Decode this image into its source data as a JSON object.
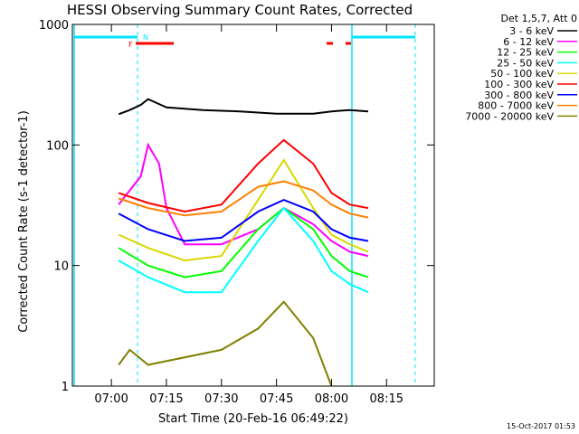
{
  "chart_data": {
    "type": "line",
    "title": "HESSI Observing Summary Count Rates, Corrected",
    "xlabel": "Start Time (20-Feb-16 06:49:22)",
    "ylabel": "Corrected Count Rate (s-1 detector-1)",
    "y_scale": "log",
    "ylim": [
      1,
      1000
    ],
    "xlim": [
      "06:49:22",
      "08:28:00"
    ],
    "x_ticks": [
      "07:00",
      "07:15",
      "07:30",
      "07:45",
      "08:00",
      "08:15"
    ],
    "y_ticks": [
      "1",
      "10",
      "100",
      "1000"
    ],
    "legend_title": "Det 1,5,7, Att 0",
    "legend_position": "outside-right",
    "flag_labels": {
      "flare": "F",
      "night": "N"
    },
    "series": [
      {
        "name": "3 - 6 keV",
        "color": "#000000",
        "x": [
          "07:02",
          "07:05",
          "07:08",
          "07:10",
          "07:15",
          "07:25",
          "07:35",
          "07:45",
          "07:55",
          "08:00",
          "08:05",
          "08:10"
        ],
        "y": [
          180,
          195,
          215,
          240,
          205,
          195,
          190,
          182,
          182,
          190,
          195,
          190
        ]
      },
      {
        "name": "6 - 12 keV",
        "color": "#ff00ff",
        "x": [
          "07:02",
          "07:08",
          "07:10",
          "07:13",
          "07:15",
          "07:20",
          "07:30",
          "07:40",
          "07:47",
          "07:55",
          "08:00",
          "08:05",
          "08:10"
        ],
        "y": [
          32,
          55,
          100,
          70,
          30,
          15,
          15,
          20,
          30,
          22,
          16,
          13,
          12
        ]
      },
      {
        "name": "12 - 25 keV",
        "color": "#00ff00",
        "x": [
          "07:02",
          "07:10",
          "07:20",
          "07:30",
          "07:40",
          "07:47",
          "07:55",
          "08:00",
          "08:05",
          "08:10"
        ],
        "y": [
          14,
          10,
          8,
          9,
          20,
          30,
          20,
          12,
          9,
          8
        ]
      },
      {
        "name": "25 - 50 keV",
        "color": "#00ffff",
        "x": [
          "07:02",
          "07:10",
          "07:20",
          "07:30",
          "07:40",
          "07:47",
          "07:55",
          "08:00",
          "08:05",
          "08:10"
        ],
        "y": [
          11,
          8,
          6,
          6,
          16,
          30,
          16,
          9,
          7,
          6
        ]
      },
      {
        "name": "50 - 100 keV",
        "color": "#d8d800",
        "x": [
          "07:02",
          "07:10",
          "07:20",
          "07:30",
          "07:40",
          "07:47",
          "07:55",
          "08:00",
          "08:05",
          "08:10"
        ],
        "y": [
          18,
          14,
          11,
          12,
          35,
          75,
          30,
          18,
          15,
          13
        ]
      },
      {
        "name": "100 - 300 keV",
        "color": "#ff0000",
        "x": [
          "07:02",
          "07:10",
          "07:20",
          "07:30",
          "07:40",
          "07:47",
          "07:55",
          "08:00",
          "08:05",
          "08:10"
        ],
        "y": [
          40,
          33,
          28,
          32,
          70,
          110,
          70,
          40,
          32,
          30
        ]
      },
      {
        "name": "300 - 800 keV",
        "color": "#0000ff",
        "x": [
          "07:02",
          "07:10",
          "07:20",
          "07:30",
          "07:40",
          "07:47",
          "07:55",
          "08:00",
          "08:05",
          "08:10"
        ],
        "y": [
          27,
          20,
          16,
          17,
          28,
          35,
          28,
          20,
          17,
          16
        ]
      },
      {
        "name": "800 - 7000 keV",
        "color": "#ff8000",
        "x": [
          "07:02",
          "07:10",
          "07:20",
          "07:30",
          "07:40",
          "07:47",
          "07:55",
          "08:00",
          "08:05",
          "08:10"
        ],
        "y": [
          36,
          30,
          26,
          28,
          45,
          50,
          42,
          32,
          27,
          25
        ]
      },
      {
        "name": "7000 - 20000 keV",
        "color": "#808000",
        "x": [
          "07:02",
          "07:05",
          "07:10",
          "07:30",
          "07:40",
          "07:47",
          "07:55",
          "08:00"
        ],
        "y": [
          1.5,
          2,
          1.5,
          2,
          3,
          5,
          2.5,
          1
        ]
      }
    ]
  },
  "footer": {
    "timestamp": "15-Oct-2017 01:53"
  }
}
